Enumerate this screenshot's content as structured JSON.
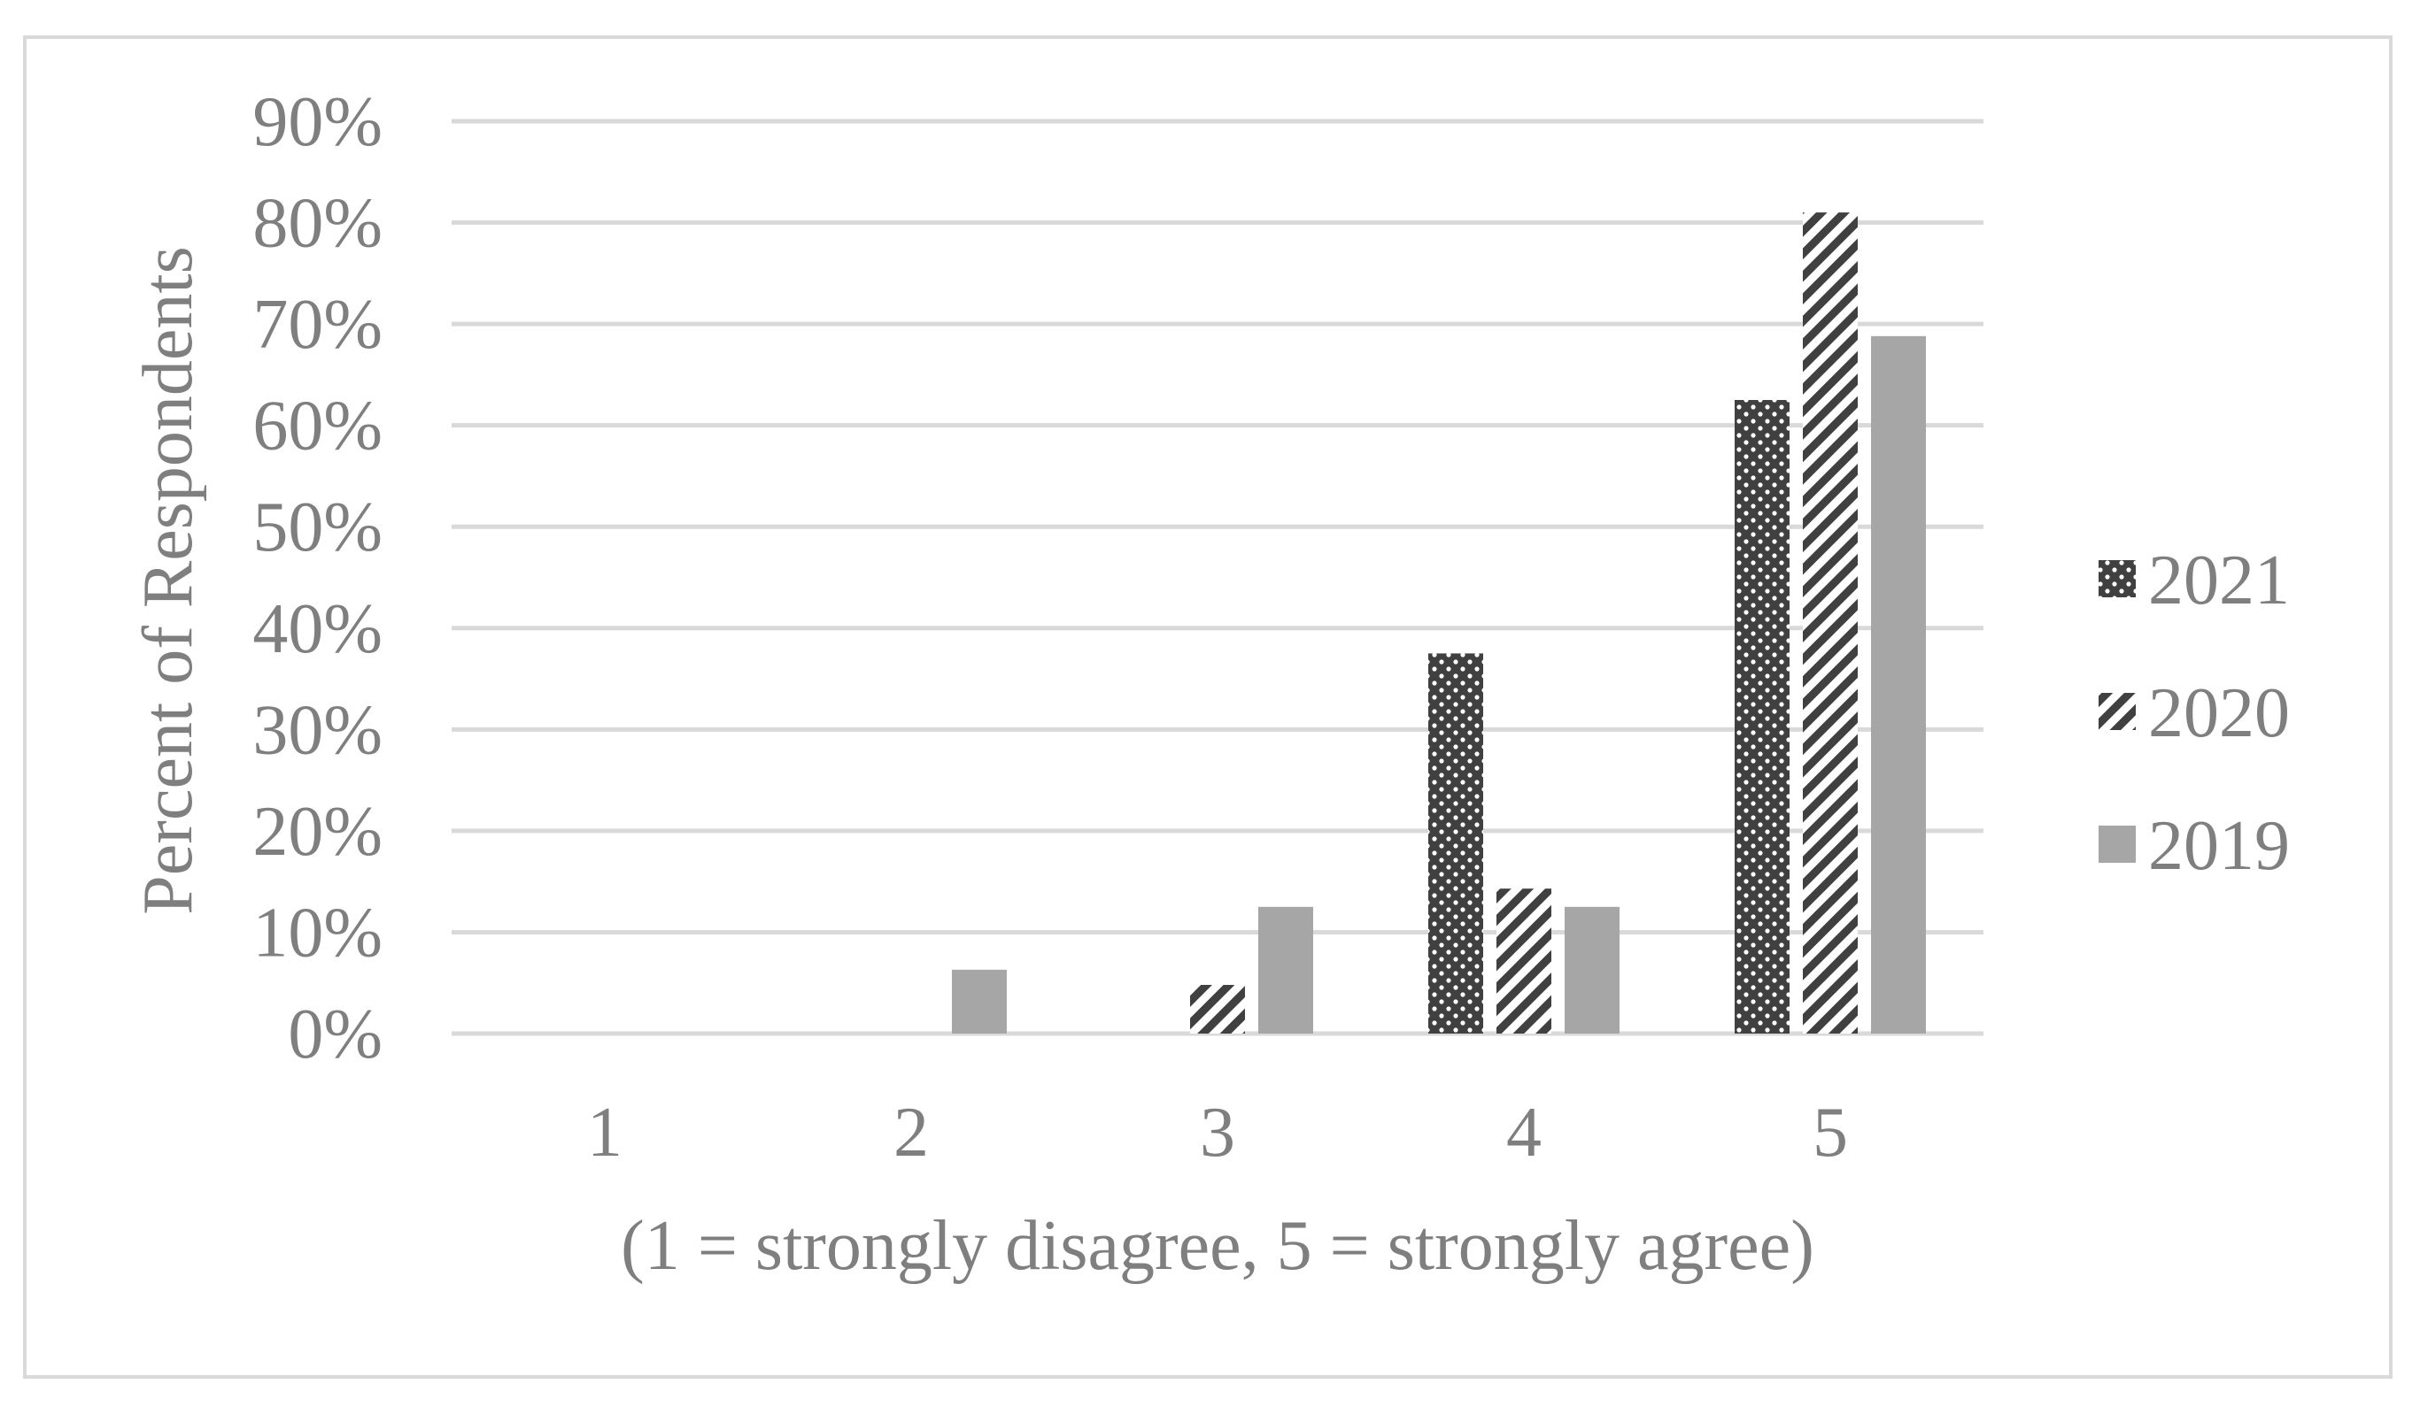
{
  "chart_data": {
    "type": "bar",
    "categories": [
      "1",
      "2",
      "3",
      "4",
      "5"
    ],
    "series": [
      {
        "name": "2021",
        "values": [
          0,
          0,
          0,
          37.5,
          62.5
        ],
        "pattern": "dots",
        "color": "#404040"
      },
      {
        "name": "2020",
        "values": [
          0,
          0,
          4.8,
          14.3,
          81.0
        ],
        "pattern": "diagonal-stripes",
        "color": "#404040"
      },
      {
        "name": "2019",
        "values": [
          0,
          6.3,
          12.5,
          12.5,
          68.8
        ],
        "pattern": "solid",
        "color": "#a6a6a6"
      }
    ],
    "title": "",
    "xlabel": "(1 = strongly disagree, 5 = strongly agree)",
    "ylabel": "Percent of Respondents",
    "ylim": [
      0,
      90
    ],
    "yticks": [
      "0%",
      "10%",
      "20%",
      "30%",
      "40%",
      "50%",
      "60%",
      "70%",
      "80%",
      "90%"
    ],
    "grid": true,
    "legend_position": "right",
    "colors": {
      "gridline": "#d9d9d9",
      "text": "#7f7f7f",
      "frame": "#d9d9d9"
    }
  }
}
